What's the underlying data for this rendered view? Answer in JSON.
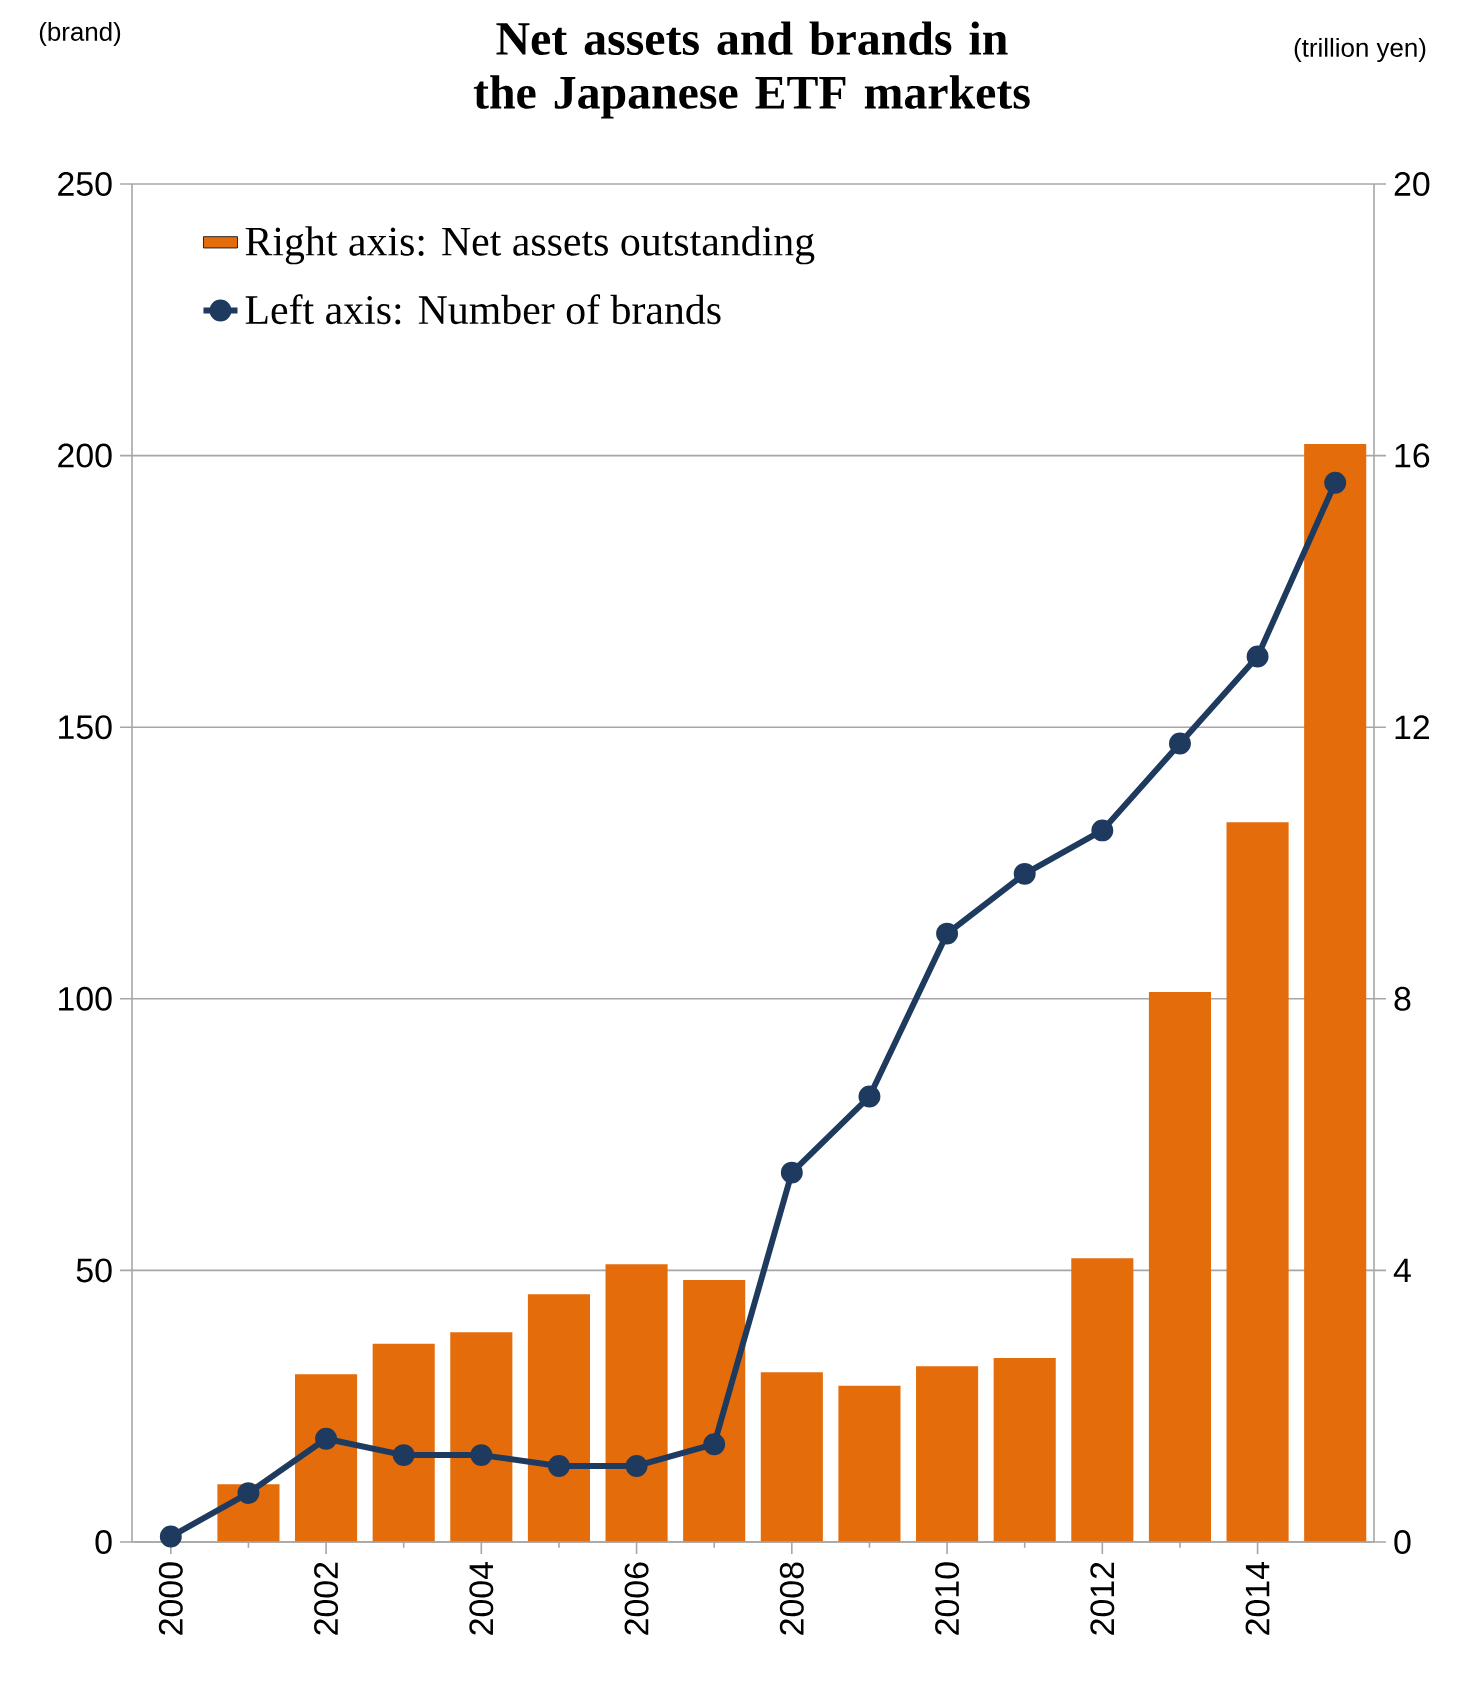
{
  "chart_data": {
    "type": "bar",
    "title": "Net assets and brands in the Japanese ETF markets",
    "ylabel": "(brand)",
    "y2label": "(trillion yen)",
    "x": [
      2000,
      2001,
      2002,
      2003,
      2004,
      2005,
      2006,
      2007,
      2008,
      2009,
      2010,
      2011,
      2012,
      2013,
      2014,
      2015
    ],
    "series": [
      {
        "name": "Right axis: Net assets outstanding",
        "axis": "y2",
        "color": "#e46c0a",
        "values": [
          0,
          0.85,
          2.47,
          2.92,
          3.09,
          3.65,
          4.09,
          3.86,
          2.5,
          2.3,
          2.59,
          2.71,
          4.18,
          8.1,
          10.6,
          16.17
        ]
      },
      {
        "name": "Left axis: Number of brands",
        "type": "line",
        "axis": "y",
        "color": "#1f3a5f",
        "marker": "circle",
        "values": [
          1,
          9,
          19,
          16,
          16,
          14,
          14,
          18,
          68,
          82,
          112,
          123,
          131,
          147,
          163,
          195
        ]
      }
    ],
    "xlim": [
      1999.5,
      2015.5
    ],
    "xticks": [
      2000,
      2002,
      2004,
      2006,
      2008,
      2010,
      2012,
      2014
    ],
    "ylim": [
      0,
      250
    ],
    "yticks": [
      0,
      50,
      100,
      150,
      200,
      250
    ],
    "y2lim": [
      0,
      20
    ],
    "y2ticks": [
      0,
      4,
      8,
      12,
      16,
      20
    ],
    "grid": "y",
    "legend": "top left"
  }
}
